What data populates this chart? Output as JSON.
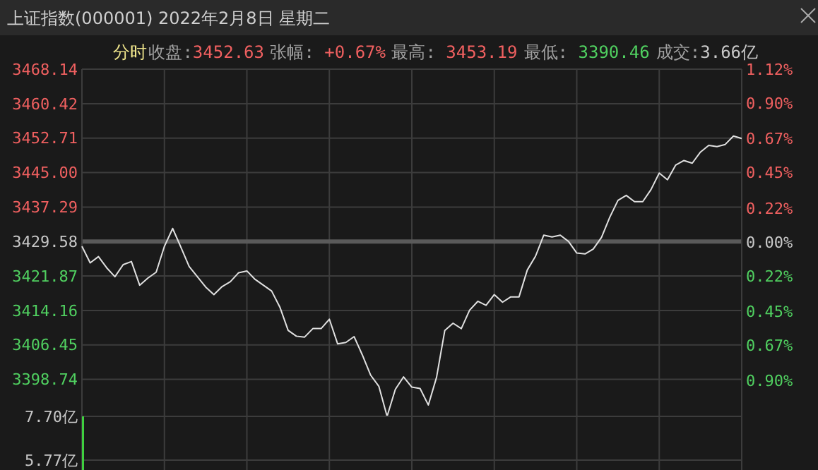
{
  "chart_data": [
    {
      "type": "line",
      "title": "上证指数(000001) 2022年2月8日 星期二",
      "annotations": [
        "分时",
        "收盘:3452.63",
        "张幅: +0.67%",
        "最高: 3453.19",
        "最低: 3390.46",
        "成交:3.66亿"
      ],
      "categories": [
        null,
        null,
        null,
        null,
        null,
        null,
        null,
        null,
        null,
        null,
        null,
        null,
        null,
        null,
        null,
        null,
        null,
        null,
        null,
        null,
        null,
        null,
        null,
        null,
        null,
        null,
        null,
        null,
        null,
        null,
        null,
        null,
        null,
        null,
        null,
        null,
        null,
        null,
        null,
        null,
        null,
        null,
        null,
        null,
        null,
        null,
        null,
        null,
        null,
        null,
        null,
        null,
        null,
        null,
        null,
        null,
        null,
        null,
        null,
        null,
        null,
        null,
        null,
        null,
        null,
        null,
        null,
        null,
        null,
        null,
        null,
        null,
        null,
        null,
        null,
        null,
        null,
        null,
        null,
        null,
        null
      ],
      "series": [
        {
          "color": "#e0e0e0",
          "values": [
            3428.5,
            3424.8,
            3426.2,
            3423.7,
            3421.7,
            3424.4,
            3425.1,
            3419.8,
            3421.4,
            3422.7,
            3428.5,
            3432.5,
            3428.3,
            3424.0,
            3421.7,
            3419.4,
            3417.7,
            3419.5,
            3420.6,
            3422.6,
            3423.0,
            3421.1,
            3419.8,
            3418.5,
            3414.9,
            3409.7,
            3408.4,
            3408.2,
            3410.1,
            3410.1,
            3412.2,
            3406.7,
            3407.0,
            3408.3,
            3404.2,
            3399.7,
            3397.2,
            3390.46,
            3396.5,
            3399.3,
            3397.0,
            3396.7,
            3393.0,
            3399.2,
            3409.7,
            3411.3,
            3410.1,
            3414.2,
            3416.2,
            3415.3,
            3417.7,
            3416.0,
            3417.2,
            3417.2,
            3423.2,
            3426.3,
            3431.0,
            3430.6,
            3431.0,
            3429.6,
            3427.0,
            3426.8,
            3427.9,
            3430.5,
            3435.0,
            3438.8,
            3439.9,
            3438.5,
            3438.5,
            3441.2,
            3444.9,
            3443.4,
            3446.7,
            3447.7,
            3447.1,
            3449.6,
            3451.1,
            3450.8,
            3451.3,
            3453.19,
            3452.63
          ]
        }
      ],
      "ylim": [
        3390.46,
        3468.14
      ],
      "yticks": [
        {
          "value": 3398.74,
          "label": "3398.74"
        },
        {
          "value": 3406.45,
          "label": "3406.45"
        },
        {
          "value": 3414.16,
          "label": "3414.16"
        },
        {
          "value": 3421.87,
          "label": "3421.87"
        },
        {
          "value": 3429.58,
          "label": "3429.58"
        },
        {
          "value": 3437.29,
          "label": "3437.29"
        },
        {
          "value": 3445.0,
          "label": "3445.00"
        },
        {
          "value": 3452.71,
          "label": "3452.71"
        },
        {
          "value": 3460.42,
          "label": "3460.42"
        },
        {
          "value": 3468.14,
          "label": "3468.14"
        }
      ],
      "y2lim": [
        -1.13,
        1.12
      ],
      "y2ticks": [
        {
          "value": -0.9,
          "label": "0.90%"
        },
        {
          "value": -0.67,
          "label": "0.67%"
        },
        {
          "value": -0.45,
          "label": "0.45%"
        },
        {
          "value": -0.22,
          "label": "0.22%"
        },
        {
          "value": 0,
          "label": "0.00%"
        },
        {
          "value": 0.22,
          "label": "0.22%"
        },
        {
          "value": 0.45,
          "label": "0.45%"
        },
        {
          "value": 0.67,
          "label": "0.67%"
        },
        {
          "value": 0.9,
          "label": "0.90%"
        },
        {
          "value": 1.12,
          "label": "1.12%"
        }
      ],
      "ref_lines": [
        {
          "axis": "y",
          "value": 3429.58,
          "color": "#5a5a5a"
        }
      ],
      "grid": true,
      "tick_labels": "y"
    },
    {
      "type": "bar",
      "categories": [
        null,
        null,
        null,
        null,
        null,
        null,
        null,
        null,
        null,
        null,
        null,
        null,
        null,
        null,
        null,
        null,
        null,
        null,
        null,
        null,
        null,
        null,
        null,
        null,
        null,
        null,
        null,
        null,
        null,
        null,
        null,
        null,
        null,
        null,
        null,
        null,
        null,
        null,
        null,
        null,
        null,
        null,
        null,
        null,
        null,
        null,
        null,
        null,
        null,
        null,
        null,
        null,
        null,
        null,
        null,
        null,
        null,
        null,
        null,
        null,
        null,
        null,
        null,
        null,
        null,
        null,
        null,
        null,
        null,
        null,
        null,
        null,
        null,
        null,
        null,
        null,
        null,
        null,
        null,
        null,
        null
      ],
      "values": [
        7.7,
        null,
        null,
        null,
        null,
        null,
        null,
        null,
        null,
        null,
        null,
        null,
        null,
        null,
        null,
        null,
        null,
        null,
        null,
        null,
        null,
        null,
        null,
        null,
        null,
        null,
        null,
        null,
        null,
        null,
        null,
        null,
        null,
        null,
        null,
        null,
        null,
        null,
        null,
        null,
        null,
        null,
        null,
        null,
        null,
        null,
        null,
        null,
        null,
        null,
        null,
        null,
        null,
        null,
        null,
        null,
        null,
        null,
        null,
        null,
        null,
        null,
        null,
        null,
        null,
        null,
        null,
        null,
        null,
        null,
        null,
        null,
        null,
        null,
        null,
        null,
        null,
        null,
        null,
        null,
        null
      ],
      "color": "#3fcf3f",
      "ylim": [
        5.33,
        7.7
      ],
      "yticks": [
        {
          "value": 5.77,
          "label": "5.77亿"
        },
        {
          "value": 7.7,
          "label": "7.70亿"
        }
      ],
      "grid": true,
      "tick_labels": "y"
    }
  ]
}
